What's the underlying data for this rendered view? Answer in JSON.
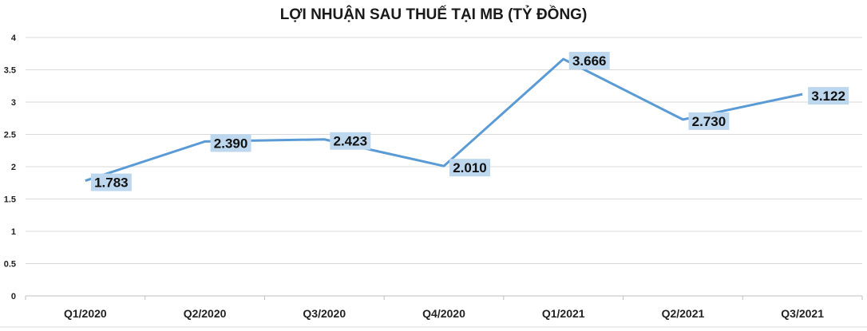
{
  "chart_data": {
    "type": "line",
    "title": "LỢI NHUẬN SAU THUẾ TẠI MB (TỶ ĐỒNG)",
    "xlabel": "",
    "ylabel": "",
    "categories": [
      "Q1/2020",
      "Q2/2020",
      "Q3/2020",
      "Q4/2020",
      "Q1/2021",
      "Q2/2021",
      "Q3/2021"
    ],
    "series": [
      {
        "values": [
          1.783,
          2.39,
          2.423,
          2.01,
          3.666,
          2.73,
          3.122
        ],
        "data_labels": [
          "1.783",
          "2.390",
          "2.423",
          "2.010",
          "3.666",
          "2.730",
          "3.122"
        ]
      }
    ],
    "ylim": [
      0,
      4
    ],
    "yticks": [
      "0",
      "0.5",
      "1",
      "1.5",
      "2",
      "2.5",
      "3",
      "3.5",
      "4"
    ],
    "grid": true,
    "legend": "none",
    "colors": {
      "line": "#5b9bd5",
      "label_bg": "#bdd7ee",
      "grid": "#d9d9d9"
    }
  }
}
